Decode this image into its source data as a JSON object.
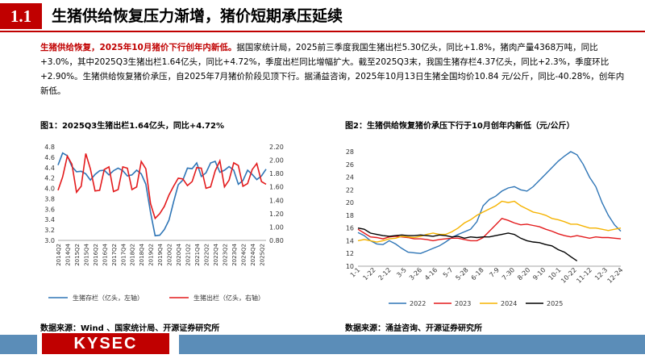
{
  "header": {
    "section_number": "1.1",
    "title": "生猪供给恢复压力渐增，猪价短期承压延续"
  },
  "paragraph": {
    "highlight": "生猪供给恢复，2025年10月猪价下行创年内新低。",
    "body": "据国家统计局，2025前三季度我国生猪出栏5.30亿头，同比+1.8%，猪肉产量4368万吨，同比+3.0%，其中2025Q3生猪出栏1.64亿头，同比+4.72%，季度出栏同比增幅扩大。截至2025Q3末，我国生猪存栏4.37亿头，同比+2.3%，季度环比+2.90%。生猪供给恢复猪价承压，自2025年7月猪价阶段见顶下行。据涌益咨询，2025年10月13日生猪全国均价10.84 元/公斤，同比-40.28%，创年内新低。"
  },
  "footer": {
    "logo": "KYSEC"
  },
  "colors": {
    "accent": "#c00000",
    "footer_bar": "#5b8db8"
  },
  "chart_data": [
    {
      "type": "line",
      "title": "图1：2025Q3生猪出栏1.64亿头，同比+4.72%",
      "source": "数据来源：Wind 、国家统计局、开源证券研究所",
      "categories": [
        "2014Q2",
        "2014Q3",
        "2014Q4",
        "2015Q1",
        "2015Q2",
        "2015Q3",
        "2015Q4",
        "2016Q1",
        "2016Q2",
        "2016Q3",
        "2016Q4",
        "2017Q1",
        "2017Q2",
        "2017Q3",
        "2017Q4",
        "2018Q1",
        "2018Q2",
        "2018Q3",
        "2018Q4",
        "2019Q1",
        "2019Q2",
        "2019Q3",
        "2019Q4",
        "2020Q1",
        "2020Q2",
        "2020Q3",
        "2020Q4",
        "2021Q1",
        "2021Q2",
        "2021Q3",
        "2021Q4",
        "2022Q1",
        "2022Q2",
        "2022Q3",
        "2022Q4",
        "2023Q1",
        "2023Q2",
        "2023Q3",
        "2023Q4",
        "2024Q1",
        "2024Q2",
        "2024Q3",
        "2024Q4",
        "2025Q1",
        "2025Q2",
        "2025Q3"
      ],
      "tick_labels": [
        "2014Q2",
        "2014Q4",
        "2015Q2",
        "2015Q4",
        "2016Q2",
        "2016Q4",
        "2017Q2",
        "2017Q4",
        "2018Q2",
        "2018Q4",
        "2019Q2",
        "2019Q4",
        "2020Q2",
        "2020Q4",
        "2021Q2",
        "2021Q4",
        "2022Q2",
        "2022Q4",
        "2023Q2",
        "2023Q4",
        "2024Q2",
        "2024Q4",
        "2025Q2"
      ],
      "left_axis": {
        "min": 3.0,
        "max": 4.8,
        "ticks": [
          "3.0",
          "3.2",
          "3.4",
          "3.6",
          "3.8",
          "4.0",
          "4.2",
          "4.4",
          "4.6",
          "4.8"
        ]
      },
      "right_axis": {
        "min": 0.8,
        "max": 2.2,
        "ticks": [
          "0.80",
          "1.00",
          "1.20",
          "1.40",
          "1.60",
          "1.80",
          "2.00",
          "2.20"
        ]
      },
      "series": [
        {
          "name": "生猪存栏（亿头，左轴）",
          "axis": "left",
          "color": "#2e75b6",
          "values": [
            4.45,
            4.68,
            4.63,
            4.42,
            4.32,
            4.33,
            4.28,
            4.16,
            4.27,
            4.34,
            4.35,
            4.26,
            4.34,
            4.39,
            4.34,
            4.24,
            4.26,
            4.35,
            4.28,
            4.08,
            3.54,
            3.09,
            3.1,
            3.21,
            3.39,
            3.74,
            4.07,
            4.16,
            4.39,
            4.38,
            4.49,
            4.23,
            4.3,
            4.49,
            4.52,
            4.31,
            4.35,
            4.42,
            4.35,
            4.08,
            4.15,
            4.35,
            4.27,
            4.17,
            4.24,
            4.37
          ]
        },
        {
          "name": "生猪出栏（亿头，右轴）",
          "axis": "right",
          "color": "#e31a1c",
          "values": [
            1.55,
            1.75,
            2.06,
            1.94,
            1.52,
            1.61,
            2.1,
            1.87,
            1.54,
            1.55,
            1.86,
            1.9,
            1.53,
            1.56,
            1.9,
            1.88,
            1.56,
            1.6,
            1.98,
            1.87,
            1.35,
            1.13,
            1.2,
            1.31,
            1.48,
            1.61,
            1.73,
            1.72,
            1.62,
            1.68,
            1.89,
            1.88,
            1.58,
            1.6,
            1.84,
            1.99,
            1.6,
            1.7,
            1.96,
            1.92,
            1.61,
            1.65,
            1.86,
            1.95,
            1.68,
            1.64
          ]
        }
      ]
    },
    {
      "type": "line",
      "title": "图2：生猪供给恢复猪价承压下行于10月创年内新低（元/公斤）",
      "source": "数据来源：涌益咨询、开源证券研究所",
      "x_ticks": [
        "1-1",
        "1-22",
        "2-12",
        "3-5",
        "3-26",
        "4-16",
        "5-7",
        "5-28",
        "6-18",
        "7-9",
        "7-30",
        "8-20",
        "9-10",
        "10-1",
        "10-22",
        "11-12",
        "12-3",
        "12-24"
      ],
      "y_axis": {
        "min": 10,
        "max": 28,
        "ticks": [
          "10",
          "12",
          "14",
          "16",
          "18",
          "20",
          "22",
          "24",
          "26",
          "28"
        ]
      },
      "series": [
        {
          "name": "2022",
          "color": "#2e75b6",
          "values": [
            15.3,
            14.8,
            14.0,
            13.5,
            13.4,
            14.0,
            13.5,
            12.8,
            12.2,
            12.1,
            12.0,
            12.4,
            12.8,
            13.2,
            13.8,
            14.5,
            15.0,
            15.4,
            15.8,
            17.0,
            19.5,
            20.5,
            21.0,
            21.8,
            22.3,
            22.5,
            22.0,
            21.8,
            22.5,
            23.5,
            24.5,
            25.5,
            26.5,
            27.3,
            28.0,
            27.5,
            26.0,
            24.0,
            22.5,
            20.0,
            18.0,
            16.5,
            15.5
          ]
        },
        {
          "name": "2023",
          "color": "#e31a1c",
          "values": [
            15.8,
            15.2,
            14.6,
            14.5,
            14.3,
            14.6,
            14.7,
            14.6,
            14.5,
            14.3,
            14.3,
            14.2,
            14.0,
            14.2,
            14.3,
            14.4,
            14.4,
            14.2,
            14.0,
            14.0,
            14.5,
            15.5,
            16.5,
            17.5,
            17.2,
            16.8,
            16.5,
            16.6,
            16.4,
            16.2,
            15.8,
            15.5,
            15.1,
            14.8,
            14.6,
            14.8,
            14.6,
            14.4,
            14.6,
            14.5,
            14.5,
            14.4,
            14.3
          ]
        },
        {
          "name": "2024",
          "color": "#f5b301",
          "values": [
            14.0,
            14.2,
            14.0,
            13.8,
            14.0,
            14.3,
            14.4,
            14.7,
            14.6,
            14.5,
            14.7,
            15.0,
            15.2,
            15.0,
            15.0,
            15.4,
            16.0,
            16.8,
            17.3,
            18.0,
            18.5,
            19.0,
            19.5,
            20.2,
            20.0,
            20.2,
            19.5,
            19.0,
            18.5,
            18.3,
            18.0,
            17.5,
            17.3,
            17.0,
            16.6,
            16.6,
            16.3,
            16.0,
            16.0,
            15.8,
            15.6,
            15.8,
            16.0
          ]
        },
        {
          "name": "2025",
          "color": "#000000",
          "values": [
            16.0,
            15.8,
            15.2,
            15.0,
            14.8,
            14.7,
            14.8,
            14.9,
            14.8,
            14.8,
            14.9,
            14.8,
            14.7,
            14.9,
            14.8,
            14.6,
            14.7,
            14.4,
            14.6,
            14.5,
            14.6,
            14.6,
            14.8,
            15.0,
            15.2,
            15.0,
            14.4,
            14.0,
            13.8,
            13.7,
            13.4,
            13.2,
            12.6,
            12.2,
            11.5,
            10.84
          ]
        }
      ]
    }
  ]
}
